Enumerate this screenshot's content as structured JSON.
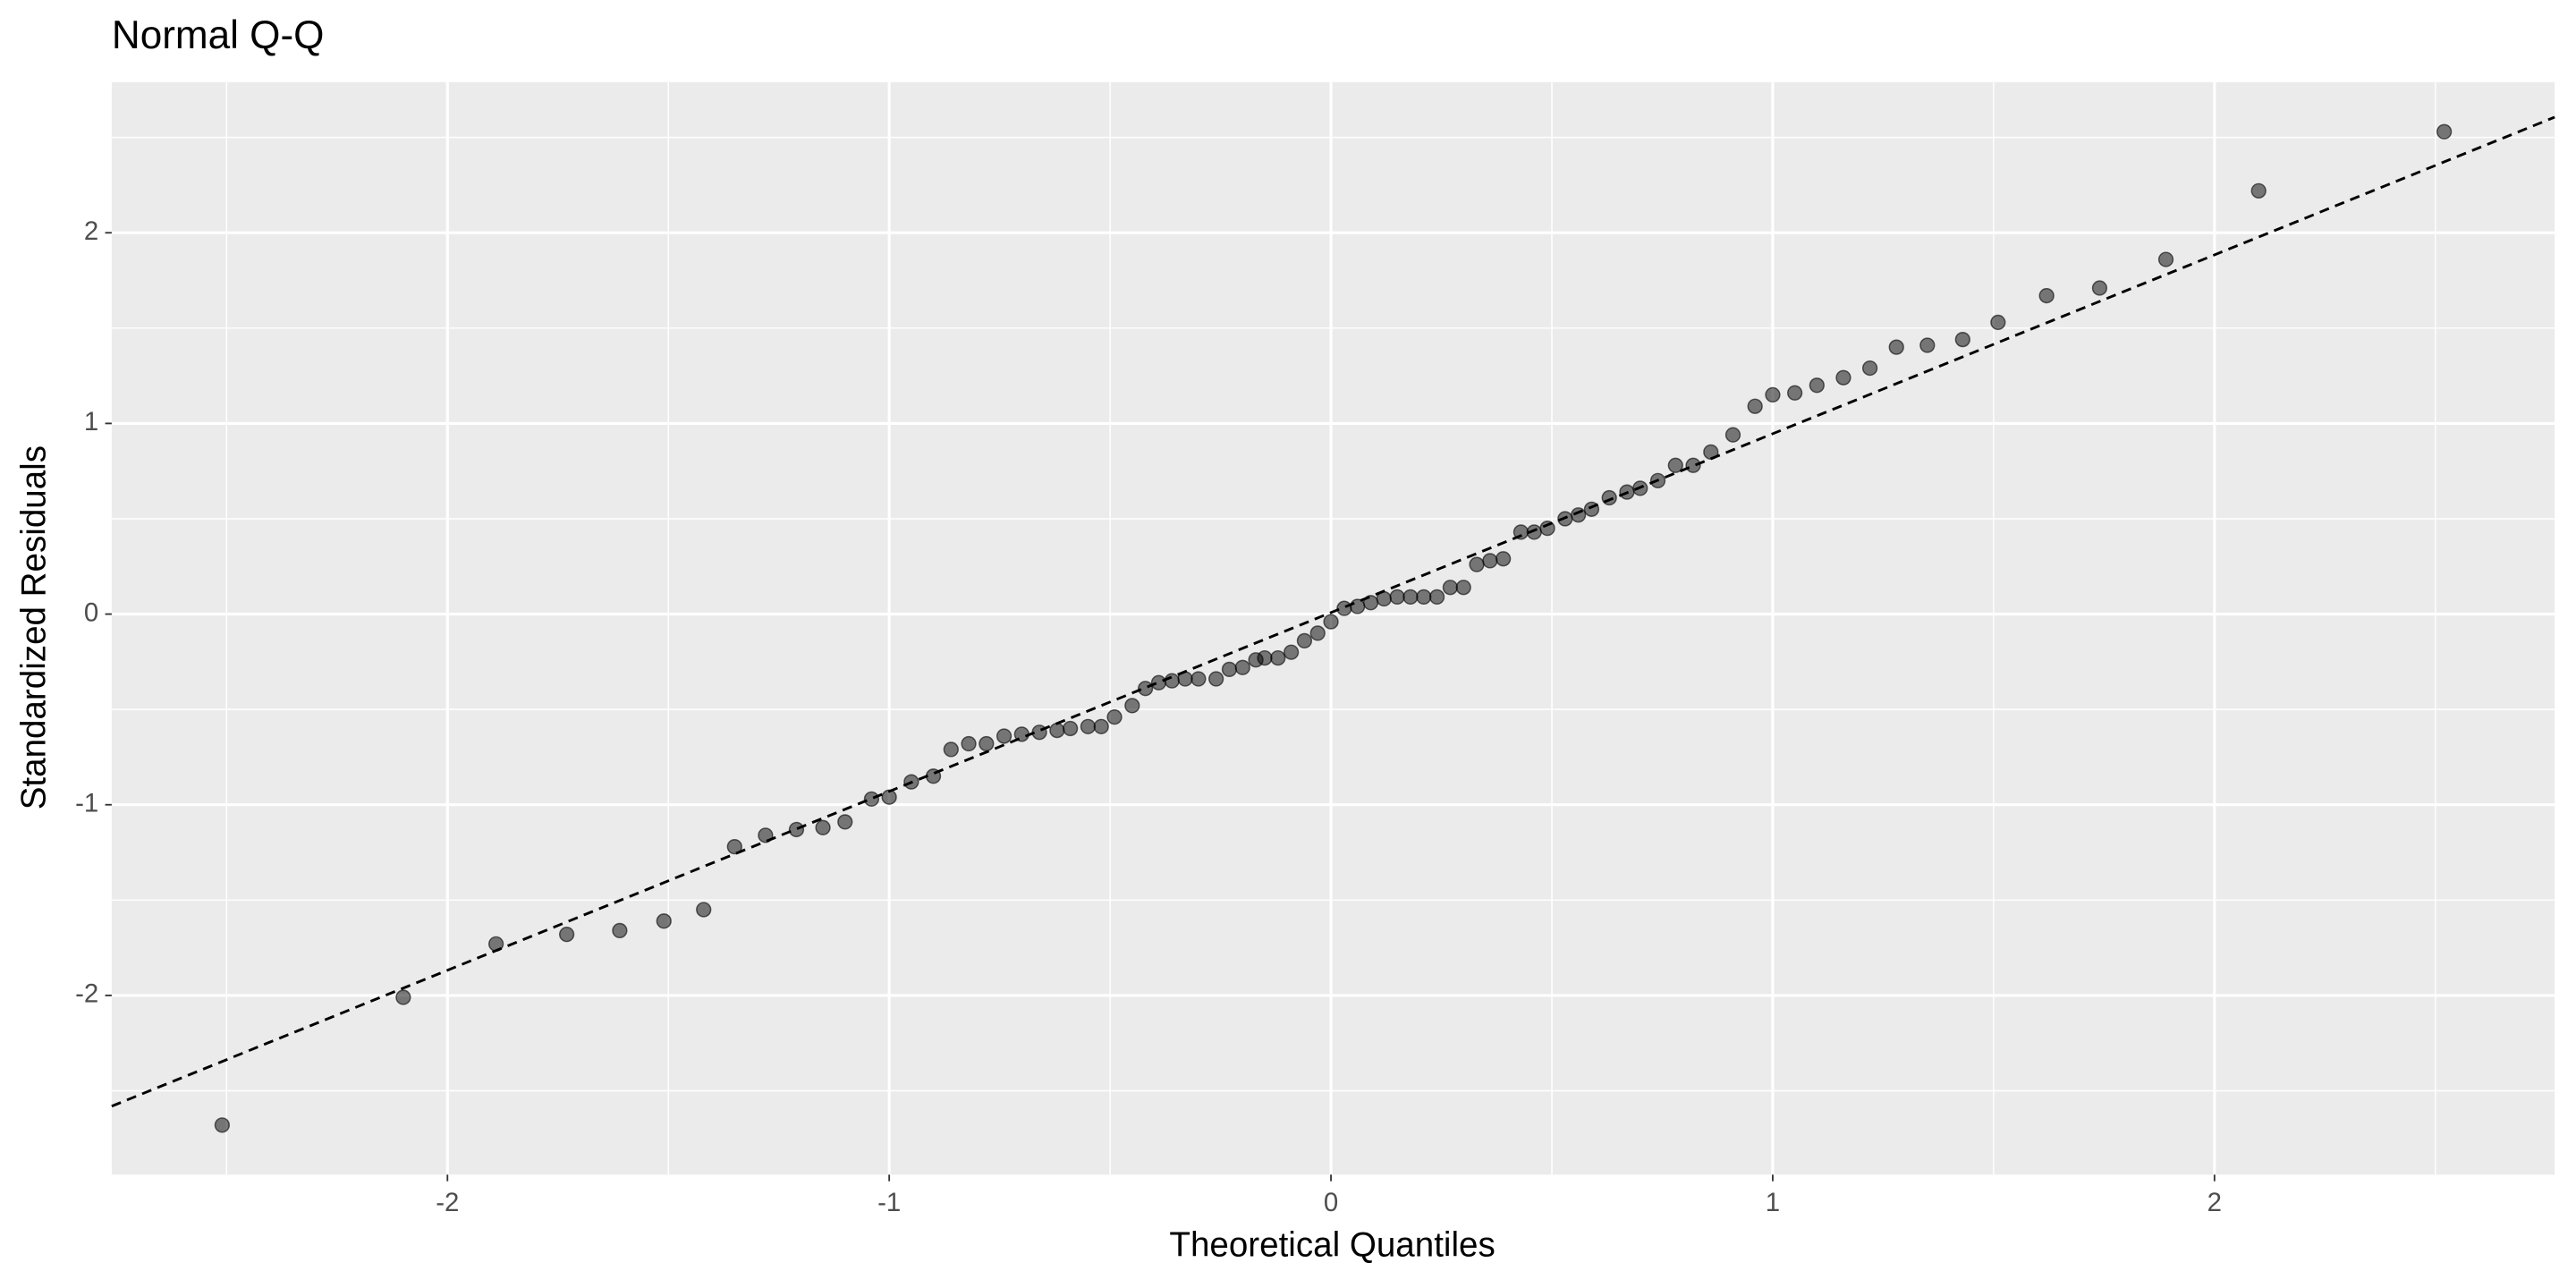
{
  "chart_data": {
    "type": "qq",
    "title": "Normal Q-Q",
    "x_label": "Theoretical Quantiles",
    "y_label": "Standardized Residuals",
    "x": [
      -2.51,
      -2.1,
      -1.89,
      -1.73,
      -1.61,
      -1.51,
      -1.42,
      -1.35,
      -1.28,
      -1.21,
      -1.15,
      -1.1,
      -1.04,
      -1.0,
      -0.95,
      -0.9,
      -0.86,
      -0.82,
      -0.78,
      -0.74,
      -0.7,
      -0.66,
      -0.62,
      -0.59,
      -0.55,
      -0.52,
      -0.49,
      -0.45,
      -0.42,
      -0.39,
      -0.36,
      -0.33,
      -0.3,
      -0.26,
      -0.23,
      -0.2,
      -0.17,
      -0.15,
      -0.12,
      -0.09,
      -0.06,
      -0.03,
      0.0,
      0.03,
      0.06,
      0.09,
      0.12,
      0.15,
      0.18,
      0.21,
      0.24,
      0.27,
      0.3,
      0.33,
      0.36,
      0.39,
      0.43,
      0.46,
      0.49,
      0.53,
      0.56,
      0.59,
      0.63,
      0.67,
      0.7,
      0.74,
      0.78,
      0.82,
      0.86,
      0.91,
      0.96,
      1.0,
      1.05,
      1.1,
      1.16,
      1.22,
      1.28,
      1.35,
      1.43,
      1.51,
      1.62,
      1.74,
      1.89,
      2.1,
      2.52
    ],
    "values": [
      -2.68,
      -2.01,
      -1.73,
      -1.68,
      -1.66,
      -1.61,
      -1.55,
      -1.22,
      -1.16,
      -1.13,
      -1.12,
      -1.09,
      -0.97,
      -0.96,
      -0.88,
      -0.85,
      -0.71,
      -0.68,
      -0.68,
      -0.64,
      -0.63,
      -0.62,
      -0.61,
      -0.6,
      -0.59,
      -0.59,
      -0.54,
      -0.48,
      -0.39,
      -0.36,
      -0.35,
      -0.34,
      -0.34,
      -0.34,
      -0.29,
      -0.28,
      -0.24,
      -0.23,
      -0.23,
      -0.2,
      -0.14,
      -0.1,
      -0.04,
      0.03,
      0.04,
      0.06,
      0.08,
      0.09,
      0.09,
      0.09,
      0.09,
      0.14,
      0.14,
      0.26,
      0.28,
      0.29,
      0.43,
      0.43,
      0.45,
      0.5,
      0.52,
      0.55,
      0.61,
      0.64,
      0.66,
      0.7,
      0.78,
      0.78,
      0.85,
      0.94,
      1.09,
      1.15,
      1.16,
      1.2,
      1.24,
      1.29,
      1.4,
      1.41,
      1.44,
      1.53,
      1.67,
      1.71,
      1.86,
      2.22,
      2.53
    ],
    "color": "#000000",
    "reference_line": {
      "intercept": 0.008,
      "slope": 0.938
    },
    "xlim": [
      -2.76,
      2.77
    ],
    "ylim": [
      -2.94,
      2.79
    ],
    "xticks": [
      -2,
      -1,
      0,
      1,
      2
    ],
    "yticks": [
      -2,
      -1,
      0,
      1,
      2
    ],
    "x_minor_breaks": [
      -2.5,
      -1.5,
      -0.5,
      0.5,
      1.5,
      2.5
    ],
    "y_minor_breaks": [
      -2.5,
      -1.5,
      -0.5,
      0.5,
      1.5,
      2.5
    ],
    "grid": true
  }
}
